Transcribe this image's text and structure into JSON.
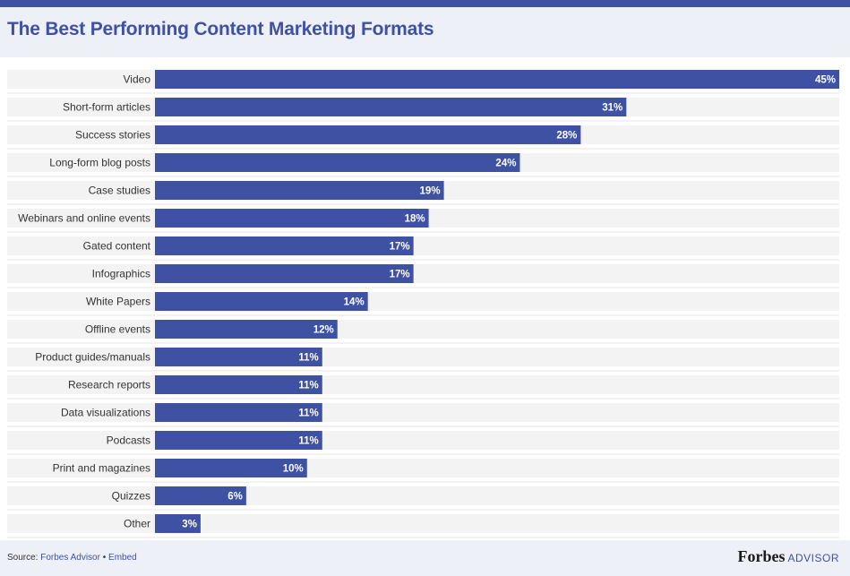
{
  "title": "The Best Performing Content Marketing Formats",
  "footer": {
    "source_label": "Source:",
    "source_link": "Forbes Advisor",
    "separator": "•",
    "embed_label": "Embed",
    "brand_name": "Forbes",
    "brand_suffix": "ADVISOR"
  },
  "colors": {
    "bar": "#3f51a3",
    "track": "#f3f3f3",
    "header_bg": "#eef0f8"
  },
  "chart_data": {
    "type": "bar",
    "orientation": "horizontal",
    "title": "The Best Performing Content Marketing Formats",
    "categories": [
      "Video",
      "Short-form articles",
      "Success stories",
      "Long-form blog posts",
      "Case studies",
      "Webinars and online events",
      "Gated content",
      "Infographics",
      "White Papers",
      "Offline events",
      "Product guides/manuals",
      "Research reports",
      "Data visualizations",
      "Podcasts",
      "Print and magazines",
      "Quizzes",
      "Other"
    ],
    "values": [
      45,
      31,
      28,
      24,
      19,
      18,
      17,
      17,
      14,
      12,
      11,
      11,
      11,
      11,
      10,
      6,
      3
    ],
    "value_labels": [
      "45%",
      "31%",
      "28%",
      "24%",
      "19%",
      "18%",
      "17%",
      "17%",
      "14%",
      "12%",
      "11%",
      "11%",
      "11%",
      "11%",
      "10%",
      "6%",
      "3%"
    ],
    "xlim": [
      0,
      45
    ],
    "grid": false,
    "legend": "none"
  }
}
